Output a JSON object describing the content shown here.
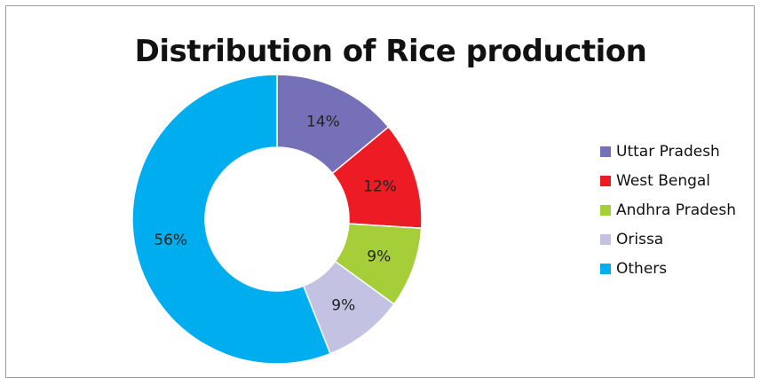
{
  "chart_data": {
    "type": "pie",
    "title": "Distribution of Rice production",
    "categories": [
      "Uttar Pradesh",
      "West Bengal",
      "Andhra Pradesh",
      "Orissa",
      "Others"
    ],
    "values": [
      14,
      12,
      9,
      9,
      56
    ],
    "labels": [
      "14%",
      "12%",
      "9%",
      "9%",
      "56%"
    ],
    "colors": [
      "#7570b8",
      "#ed1c24",
      "#a6ce39",
      "#c3c2e2",
      "#00aeef"
    ],
    "legend": "right",
    "donut": true
  }
}
